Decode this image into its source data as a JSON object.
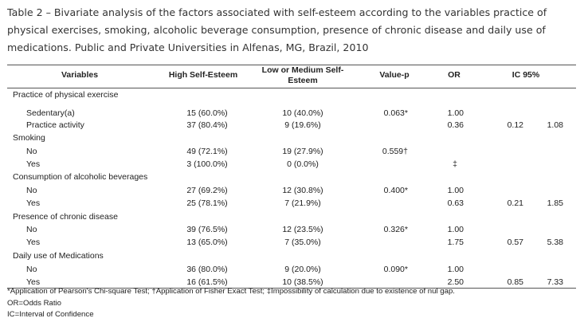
{
  "caption": "Table 2 – Bivariate analysis of the factors associated with self-esteem according to the variables practice of physical exercises, smoking, alcoholic beverage consumption, presence of chronic disease and daily use of medications. Public and Private Universities in Alfenas, MG, Brazil, 2010",
  "headers": {
    "variables": "Variables",
    "high": "High Self-Esteem",
    "low_line1": "Low or Medium Self-",
    "low_line2": "Esteem",
    "pvalue": "Value-p",
    "or": "OR",
    "ic": "IC 95%"
  },
  "groups": [
    {
      "label": "Practice of physical exercise",
      "rows": [
        {
          "label": "Sedentary(a)",
          "high": "15 (60.0%)",
          "low": "10 (40.0%)",
          "p": "0.063*",
          "or": "1.00",
          "ic_low": "",
          "ic_high": ""
        },
        {
          "label": "Practice activity",
          "high": "37 (80.4%)",
          "low": "9 (19.6%)",
          "p": "",
          "or": "0.36",
          "ic_low": "0.12",
          "ic_high": "1.08"
        }
      ]
    },
    {
      "label": "Smoking",
      "rows": [
        {
          "label": "No",
          "high": "49 (72.1%)",
          "low": "19 (27.9%)",
          "p": "0.559†",
          "or": "",
          "ic_low": "",
          "ic_high": ""
        },
        {
          "label": "Yes",
          "high": "3 (100.0%)",
          "low": "0 (0.0%)",
          "p": "",
          "or": "‡",
          "ic_low": "",
          "ic_high": ""
        }
      ]
    },
    {
      "label": "Consumption of alcoholic beverages",
      "rows": [
        {
          "label": "No",
          "high": "27 (69.2%)",
          "low": "12 (30.8%)",
          "p": "0.400*",
          "or": "1.00",
          "ic_low": "",
          "ic_high": ""
        },
        {
          "label": "Yes",
          "high": "25 (78.1%)",
          "low": "7 (21.9%)",
          "p": "",
          "or": "0.63",
          "ic_low": "0.21",
          "ic_high": "1.85"
        }
      ]
    },
    {
      "label": "Presence of chronic disease",
      "rows": [
        {
          "label": "No",
          "high": "39 (76.5%)",
          "low": "12 (23.5%)",
          "p": "0.326*",
          "or": "1.00",
          "ic_low": "",
          "ic_high": ""
        },
        {
          "label": "Yes",
          "high": "13 (65.0%)",
          "low": "7 (35.0%)",
          "p": "",
          "or": "1.75",
          "ic_low": "0.57",
          "ic_high": "5.38"
        }
      ]
    },
    {
      "label": "Daily use of Medications",
      "rows": [
        {
          "label": "No",
          "high": "36 (80.0%)",
          "low": "9 (20.0%)",
          "p": "0.090*",
          "or": "1.00",
          "ic_low": "",
          "ic_high": ""
        },
        {
          "label": "Yes",
          "high": "16 (61.5%)",
          "low": "10 (38.5%)",
          "p": "",
          "or": "2.50",
          "ic_low": "0.85",
          "ic_high": "7.33"
        }
      ]
    }
  ],
  "footnotes": [
    "*Application of Pearson's Chi-square Test; †Application of Fisher Exact Test; ‡Impossibility of calculation due to existence of  nul gap.",
    "OR=Odds Ratio",
    "IC=Interval of  Confidence"
  ]
}
